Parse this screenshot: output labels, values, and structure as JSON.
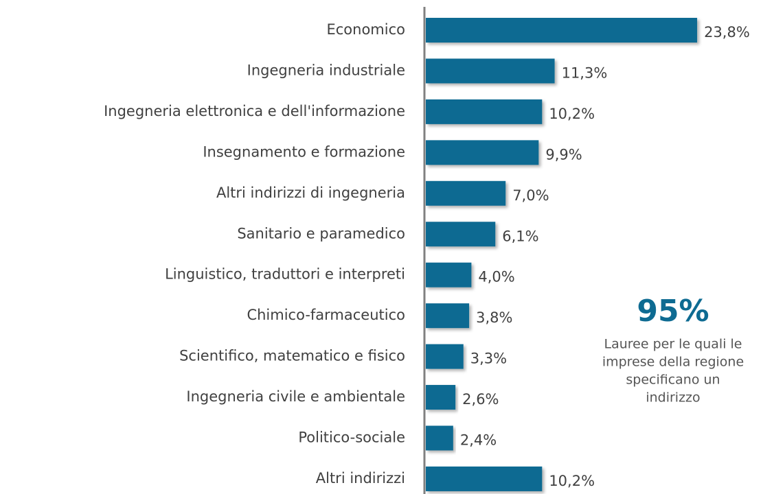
{
  "chart_data": {
    "type": "bar",
    "orientation": "horizontal",
    "categories": [
      "Economico",
      "Ingegneria industriale",
      "Ingegneria elettronica e dell'informazione",
      "Insegnamento e formazione",
      "Altri indirizzi di ingegneria",
      "Sanitario e paramedico",
      "Linguistico, traduttori e interpreti",
      "Chimico-farmaceutico",
      "Scientifico, matematico e fisico",
      "Ingegneria civile e ambientale",
      "Politico-sociale",
      "Altri indirizzi"
    ],
    "values": [
      23.8,
      11.3,
      10.2,
      9.9,
      7.0,
      6.1,
      4.0,
      3.8,
      3.3,
      2.6,
      2.4,
      10.2
    ],
    "value_labels": [
      "23,8%",
      "11,3%",
      "10,2%",
      "9,9%",
      "7,0%",
      "6,1%",
      "4,0%",
      "3,8%",
      "3,3%",
      "2,6%",
      "2,4%",
      "10,2%"
    ],
    "color": "#0e6b92",
    "annotation": {
      "headline": "95%",
      "lines": [
        "Lauree per le quali le",
        "imprese della regione",
        "specificano un",
        "indirizzo"
      ]
    }
  }
}
